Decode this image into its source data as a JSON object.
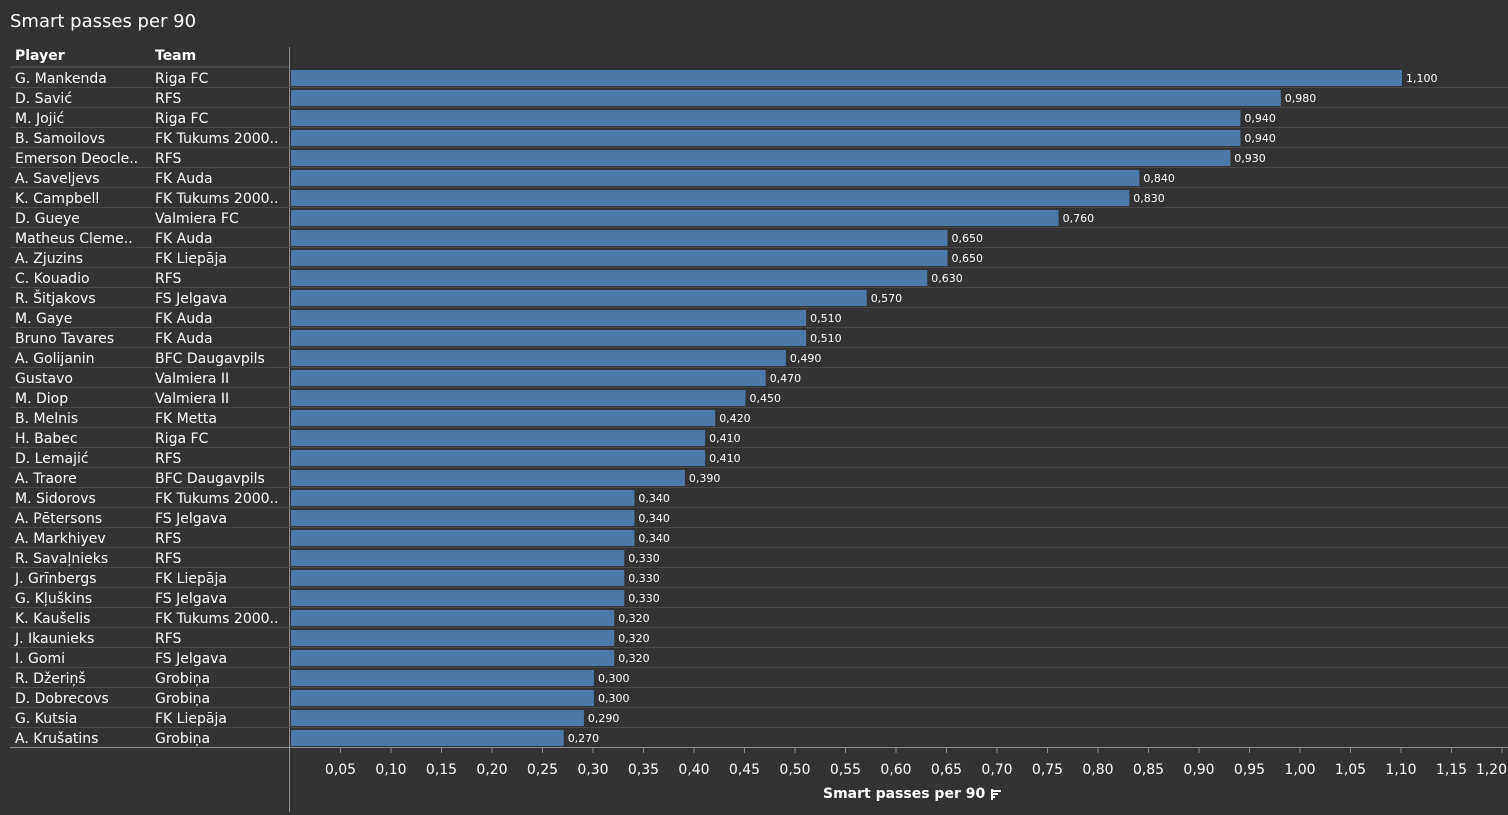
{
  "title": "Smart passes per 90",
  "headers": {
    "player": "Player",
    "team": "Team"
  },
  "axis_title": "Smart passes per 90",
  "icons": {
    "sort": "sort-descending-icon"
  },
  "colors": {
    "bar": "#4e79a7",
    "background": "#333333",
    "text": "#ffffff",
    "grid": "#5a5a5a"
  },
  "chart_data": {
    "type": "bar",
    "orientation": "horizontal",
    "xlabel": "Smart passes per 90",
    "xlim": [
      0,
      1.2
    ],
    "x_ticks": [
      "0,05",
      "0,10",
      "0,15",
      "0,20",
      "0,25",
      "0,30",
      "0,35",
      "0,40",
      "0,45",
      "0,50",
      "0,55",
      "0,60",
      "0,65",
      "0,70",
      "0,75",
      "0,80",
      "0,85",
      "0,90",
      "0,95",
      "1,00",
      "1,05",
      "1,10",
      "1,15",
      "1,20"
    ],
    "rows": [
      {
        "player": "G. Mankenda",
        "team": "Riga FC",
        "value": 1.1,
        "label": "1,100"
      },
      {
        "player": "D. Savić",
        "team": "RFS",
        "value": 0.98,
        "label": "0,980"
      },
      {
        "player": "M. Jojić",
        "team": "Riga FC",
        "value": 0.94,
        "label": "0,940"
      },
      {
        "player": "B. Samoilovs",
        "team": "FK Tukums 2000..",
        "value": 0.94,
        "label": "0,940"
      },
      {
        "player": "Emerson Deocle..",
        "team": "RFS",
        "value": 0.93,
        "label": "0,930"
      },
      {
        "player": "A. Saveljevs",
        "team": "FK Auda",
        "value": 0.84,
        "label": "0,840"
      },
      {
        "player": "K. Campbell",
        "team": "FK Tukums 2000..",
        "value": 0.83,
        "label": "0,830"
      },
      {
        "player": "D. Gueye",
        "team": "Valmiera FC",
        "value": 0.76,
        "label": "0,760"
      },
      {
        "player": "Matheus Cleme..",
        "team": "FK Auda",
        "value": 0.65,
        "label": "0,650"
      },
      {
        "player": "A. Zjuzins",
        "team": "FK Liepāja",
        "value": 0.65,
        "label": "0,650"
      },
      {
        "player": "C. Kouadio",
        "team": "RFS",
        "value": 0.63,
        "label": "0,630"
      },
      {
        "player": "R. Šitjakovs",
        "team": "FS Jelgava",
        "value": 0.57,
        "label": "0,570"
      },
      {
        "player": "M. Gaye",
        "team": "FK Auda",
        "value": 0.51,
        "label": "0,510"
      },
      {
        "player": "Bruno Tavares",
        "team": "FK Auda",
        "value": 0.51,
        "label": "0,510"
      },
      {
        "player": "A. Golijanin",
        "team": "BFC Daugavpils",
        "value": 0.49,
        "label": "0,490"
      },
      {
        "player": "Gustavo",
        "team": "Valmiera II",
        "value": 0.47,
        "label": "0,470"
      },
      {
        "player": "M. Diop",
        "team": "Valmiera II",
        "value": 0.45,
        "label": "0,450"
      },
      {
        "player": "B. Melnis",
        "team": "FK Metta",
        "value": 0.42,
        "label": "0,420"
      },
      {
        "player": "H. Babec",
        "team": "Riga FC",
        "value": 0.41,
        "label": "0,410"
      },
      {
        "player": "D. Lemajić",
        "team": "RFS",
        "value": 0.41,
        "label": "0,410"
      },
      {
        "player": "A. Traore",
        "team": "BFC Daugavpils",
        "value": 0.39,
        "label": "0,390"
      },
      {
        "player": "M. Sidorovs",
        "team": "FK Tukums 2000..",
        "value": 0.34,
        "label": "0,340"
      },
      {
        "player": "A. Pētersons",
        "team": "FS Jelgava",
        "value": 0.34,
        "label": "0,340"
      },
      {
        "player": "A. Markhiyev",
        "team": "RFS",
        "value": 0.34,
        "label": "0,340"
      },
      {
        "player": "R. Savaļnieks",
        "team": "RFS",
        "value": 0.33,
        "label": "0,330"
      },
      {
        "player": "J. Grīnbergs",
        "team": "FK Liepāja",
        "value": 0.33,
        "label": "0,330"
      },
      {
        "player": "G. Kļuškins",
        "team": "FS Jelgava",
        "value": 0.33,
        "label": "0,330"
      },
      {
        "player": "K. Kaušelis",
        "team": "FK Tukums 2000..",
        "value": 0.32,
        "label": "0,320"
      },
      {
        "player": "J. Ikaunieks",
        "team": "RFS",
        "value": 0.32,
        "label": "0,320"
      },
      {
        "player": "I. Gomi",
        "team": "FS Jelgava",
        "value": 0.32,
        "label": "0,320"
      },
      {
        "player": "R. Džeriņš",
        "team": "Grobiņa",
        "value": 0.3,
        "label": "0,300"
      },
      {
        "player": "D. Dobrecovs",
        "team": "Grobiņa",
        "value": 0.3,
        "label": "0,300"
      },
      {
        "player": "G. Kutsia",
        "team": "FK Liepāja",
        "value": 0.29,
        "label": "0,290"
      },
      {
        "player": "A. Krušatins",
        "team": "Grobiņa",
        "value": 0.27,
        "label": "0,270"
      }
    ]
  }
}
